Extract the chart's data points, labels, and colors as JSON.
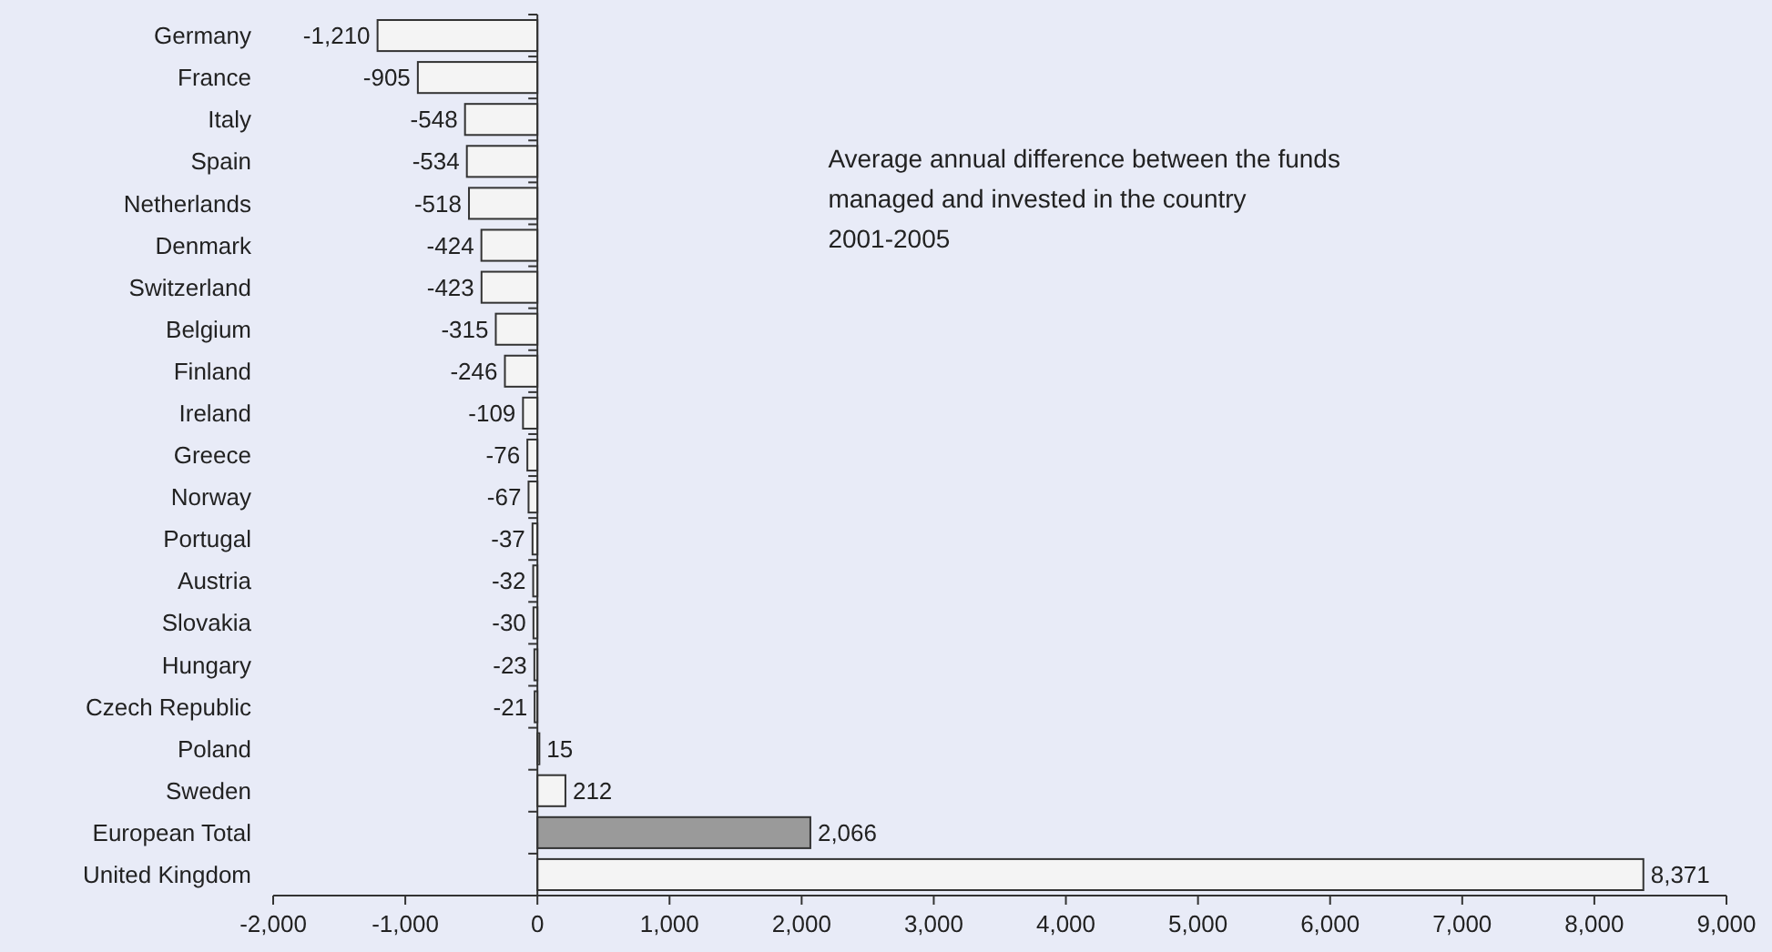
{
  "chart_data": {
    "type": "bar",
    "orientation": "horizontal",
    "title": "Average annual difference between the funds managed and invested in the country 2001-2005",
    "categories": [
      "Germany",
      "France",
      "Italy",
      "Spain",
      "Netherlands",
      "Denmark",
      "Switzerland",
      "Belgium",
      "Finland",
      "Ireland",
      "Greece",
      "Norway",
      "Portugal",
      "Austria",
      "Slovakia",
      "Hungary",
      "Czech Republic",
      "Poland",
      "Sweden",
      "European Total",
      "United Kingdom"
    ],
    "values": [
      -1210,
      -905,
      -548,
      -534,
      -518,
      -424,
      -423,
      -315,
      -246,
      -109,
      -76,
      -67,
      -37,
      -32,
      -30,
      -23,
      -21,
      15,
      212,
      2066,
      8371
    ],
    "colors": [
      "#f4f4f4",
      "#f4f4f4",
      "#f4f4f4",
      "#f4f4f4",
      "#f4f4f4",
      "#f4f4f4",
      "#f4f4f4",
      "#f4f4f4",
      "#f4f4f4",
      "#f4f4f4",
      "#f4f4f4",
      "#f4f4f4",
      "#f4f4f4",
      "#f4f4f4",
      "#f4f4f4",
      "#f4f4f4",
      "#f4f4f4",
      "#f4f4f4",
      "#f4f4f4",
      "#9a9a9a",
      "#f4f4f4"
    ],
    "xlim": [
      -2000,
      9000
    ],
    "xticks": [
      {
        "value": -2000,
        "label": "-2,000"
      },
      {
        "value": -1000,
        "label": "-1,000"
      },
      0,
      {
        "value": 1000,
        "label": "1,000"
      },
      {
        "value": 2000,
        "label": "2,000"
      },
      {
        "value": 3000,
        "label": "3,000"
      },
      {
        "value": 4000,
        "label": "4,000"
      },
      {
        "value": 5000,
        "label": "5,000"
      },
      {
        "value": 6000,
        "label": "6,000"
      },
      {
        "value": 7000,
        "label": "7,000"
      },
      {
        "value": 8000,
        "label": "8,000"
      },
      {
        "value": 9000,
        "label": "9,000"
      }
    ],
    "value_labels": [
      "-1,210",
      "-905",
      "-548",
      "-534",
      "-518",
      "-424",
      "-423",
      "-315",
      "-246",
      "-109",
      "-76",
      "-67",
      "-37",
      "-32",
      "-30",
      "-23",
      "-21",
      "15",
      "212",
      "2,066",
      "8,371"
    ]
  }
}
